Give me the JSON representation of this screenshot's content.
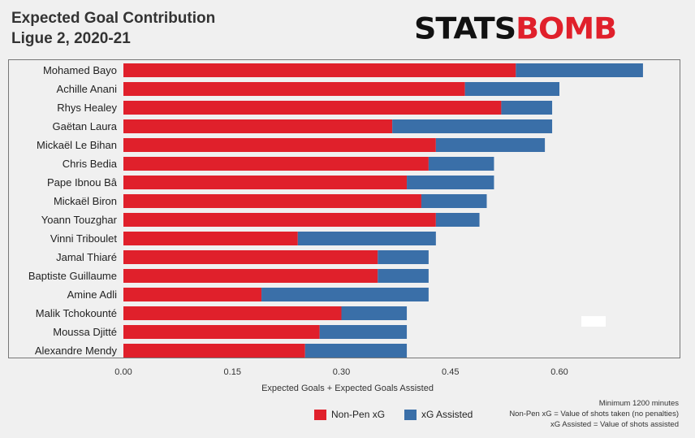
{
  "header": {
    "title_line1": "Expected Goal Contribution",
    "title_line2": "Ligue 2, 2020-21"
  },
  "logo": {
    "part1": "STATS",
    "part2": "BOMB"
  },
  "colors": {
    "non_pen_xg": "#e0202b",
    "xg_assisted": "#3a6fa8",
    "background": "#f0f0f0"
  },
  "chart_data": {
    "type": "bar",
    "orientation": "horizontal",
    "stacked": true,
    "categories": [
      "Mohamed Bayo",
      "Achille Anani",
      "Rhys Healey",
      "Gaëtan Laura",
      "Mickaël Le Bihan",
      "Chris Bedia",
      "Pape Ibnou Bâ",
      "Mickaël Biron",
      "Yoann Touzghar",
      "Vinni Triboulet",
      "Jamal Thiaré",
      "Baptiste Guillaume",
      "Amine Adli",
      "Malik Tchokounté",
      "Moussa Djitté",
      "Alexandre Mendy"
    ],
    "series": [
      {
        "name": "Non-Pen xG",
        "values": [
          0.54,
          0.47,
          0.52,
          0.37,
          0.43,
          0.42,
          0.39,
          0.41,
          0.43,
          0.24,
          0.35,
          0.35,
          0.19,
          0.3,
          0.27,
          0.25
        ]
      },
      {
        "name": "xG Assisted",
        "values": [
          0.175,
          0.13,
          0.07,
          0.22,
          0.15,
          0.09,
          0.12,
          0.09,
          0.06,
          0.19,
          0.07,
          0.07,
          0.23,
          0.09,
          0.12,
          0.14
        ]
      }
    ],
    "xlim": [
      0,
      0.72
    ],
    "xticks": [
      "0.00",
      "0.15",
      "0.30",
      "0.45",
      "0.60"
    ],
    "xtick_values": [
      0,
      0.15,
      0.3,
      0.45,
      0.6
    ],
    "xlabel": "Expected Goals + Expected Goals Assisted",
    "grid": false,
    "legend": "bottom"
  },
  "legend": {
    "non_pen": "Non-Pen xG",
    "assisted": "xG Assisted"
  },
  "notes": {
    "line1": "Minimum 1200 minutes",
    "line2": "Non-Pen xG = Value of shots taken (no penalties)",
    "line3": "xG Assisted = Value of shots assisted"
  }
}
